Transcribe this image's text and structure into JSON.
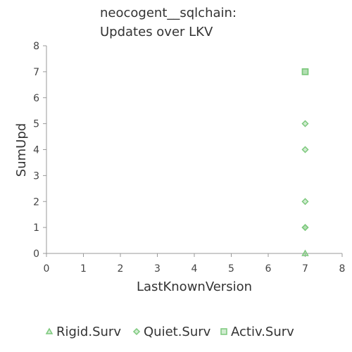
{
  "chart_data": {
    "type": "scatter",
    "title_lines": [
      "neocogent__sqlchain:",
      "Updates over LKV"
    ],
    "xlabel": "LastKnownVersion",
    "ylabel": "SumUpd",
    "xlim": [
      0,
      8
    ],
    "ylim": [
      0,
      8
    ],
    "xticks": [
      "0",
      "1",
      "2",
      "3",
      "4",
      "5",
      "6",
      "7",
      "8"
    ],
    "yticks": [
      "0",
      "1",
      "2",
      "3",
      "4",
      "5",
      "6",
      "7",
      "8"
    ],
    "grid": false,
    "legend_position": "bottom",
    "series": [
      {
        "name": "Rigid.Surv",
        "marker": "triangle",
        "color": "#7cc87c",
        "points": [
          [
            7,
            0
          ]
        ]
      },
      {
        "name": "Quiet.Surv",
        "marker": "diamond",
        "color": "#7cc87c",
        "points": [
          [
            7,
            1
          ],
          [
            7,
            1
          ],
          [
            7,
            2
          ],
          [
            7,
            4
          ],
          [
            7,
            5
          ]
        ]
      },
      {
        "name": "Activ.Surv",
        "marker": "square",
        "color": "#7cc87c",
        "points": [
          [
            7,
            7
          ],
          [
            7,
            7
          ]
        ]
      }
    ]
  }
}
